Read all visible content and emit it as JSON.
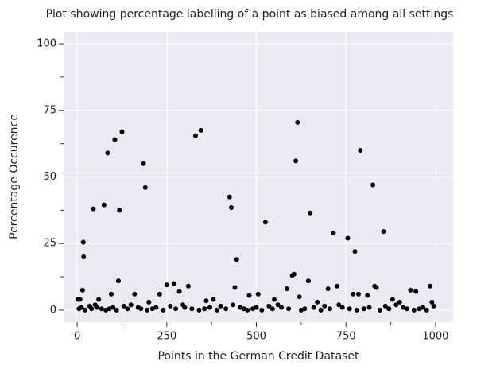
{
  "chart_data": {
    "type": "scatter",
    "title": "Plot showing percentage labelling of a point as biased among all settings",
    "x_label": "Points in the German Credit Dataset",
    "y_label": "Percentage Occurence",
    "color": "#000000",
    "grid": true,
    "xlim": [
      -38,
      1049
    ],
    "ylim": [
      -4.5,
      104.5
    ],
    "xticks": [
      0,
      250,
      500,
      750,
      1000
    ],
    "yticks": [
      0,
      25,
      50,
      75,
      100
    ],
    "xminorticks": [
      125,
      375,
      625,
      875
    ],
    "yminorticks": [
      12.5,
      37.5,
      62.5,
      87.5
    ],
    "x": [
      2,
      8,
      15,
      17,
      18,
      45,
      60,
      75,
      85,
      95,
      105,
      115,
      118,
      125,
      160,
      185,
      190,
      200,
      230,
      250,
      270,
      285,
      310,
      330,
      345,
      360,
      380,
      425,
      430,
      440,
      445,
      480,
      505,
      525,
      550,
      585,
      600,
      605,
      610,
      615,
      620,
      645,
      650,
      670,
      700,
      715,
      725,
      755,
      770,
      775,
      785,
      790,
      810,
      825,
      830,
      835,
      855,
      880,
      900,
      930,
      945,
      985,
      990,
      5,
      12,
      22,
      35,
      40,
      50,
      55,
      68,
      80,
      90,
      100,
      110,
      130,
      140,
      150,
      170,
      178,
      195,
      210,
      220,
      240,
      260,
      275,
      295,
      300,
      320,
      340,
      355,
      370,
      390,
      400,
      415,
      435,
      455,
      465,
      475,
      490,
      500,
      515,
      535,
      545,
      560,
      570,
      590,
      625,
      635,
      660,
      680,
      690,
      705,
      730,
      740,
      760,
      780,
      800,
      815,
      845,
      860,
      870,
      890,
      910,
      920,
      940,
      955,
      965,
      975,
      995
    ],
    "y": [
      4,
      4,
      7.5,
      25.5,
      20,
      38,
      4,
      39.5,
      59,
      6,
      64,
      11,
      37.5,
      67,
      6,
      55,
      46,
      3,
      6,
      9.5,
      10,
      7,
      9,
      65.5,
      67.5,
      3.5,
      4,
      42.5,
      38.5,
      8.5,
      19,
      5.5,
      6,
      33,
      4,
      8,
      13,
      13.5,
      56,
      70.5,
      5,
      11,
      36.5,
      3,
      8,
      29,
      9,
      27,
      6,
      22,
      6,
      60,
      5.5,
      47,
      9,
      8.5,
      29.5,
      4,
      3,
      7.5,
      7,
      9,
      3,
      0.5,
      1,
      0,
      1.5,
      0.5,
      2,
      1,
      0.5,
      0,
      0.5,
      1,
      0,
      1.5,
      0.5,
      2,
      1,
      0.5,
      0,
      0.5,
      1,
      0,
      1.5,
      0.5,
      2,
      1,
      0.5,
      0,
      0.5,
      1,
      0,
      1.5,
      0.5,
      2,
      1,
      0.5,
      0,
      0.5,
      1,
      0,
      1.5,
      0.5,
      2,
      1,
      0.5,
      0,
      0.5,
      1,
      0,
      1.5,
      0.5,
      2,
      1,
      0.5,
      0,
      0.5,
      1,
      0,
      1.5,
      0.5,
      2,
      1,
      0.5,
      0,
      0.5,
      1,
      0,
      1.5
    ]
  }
}
